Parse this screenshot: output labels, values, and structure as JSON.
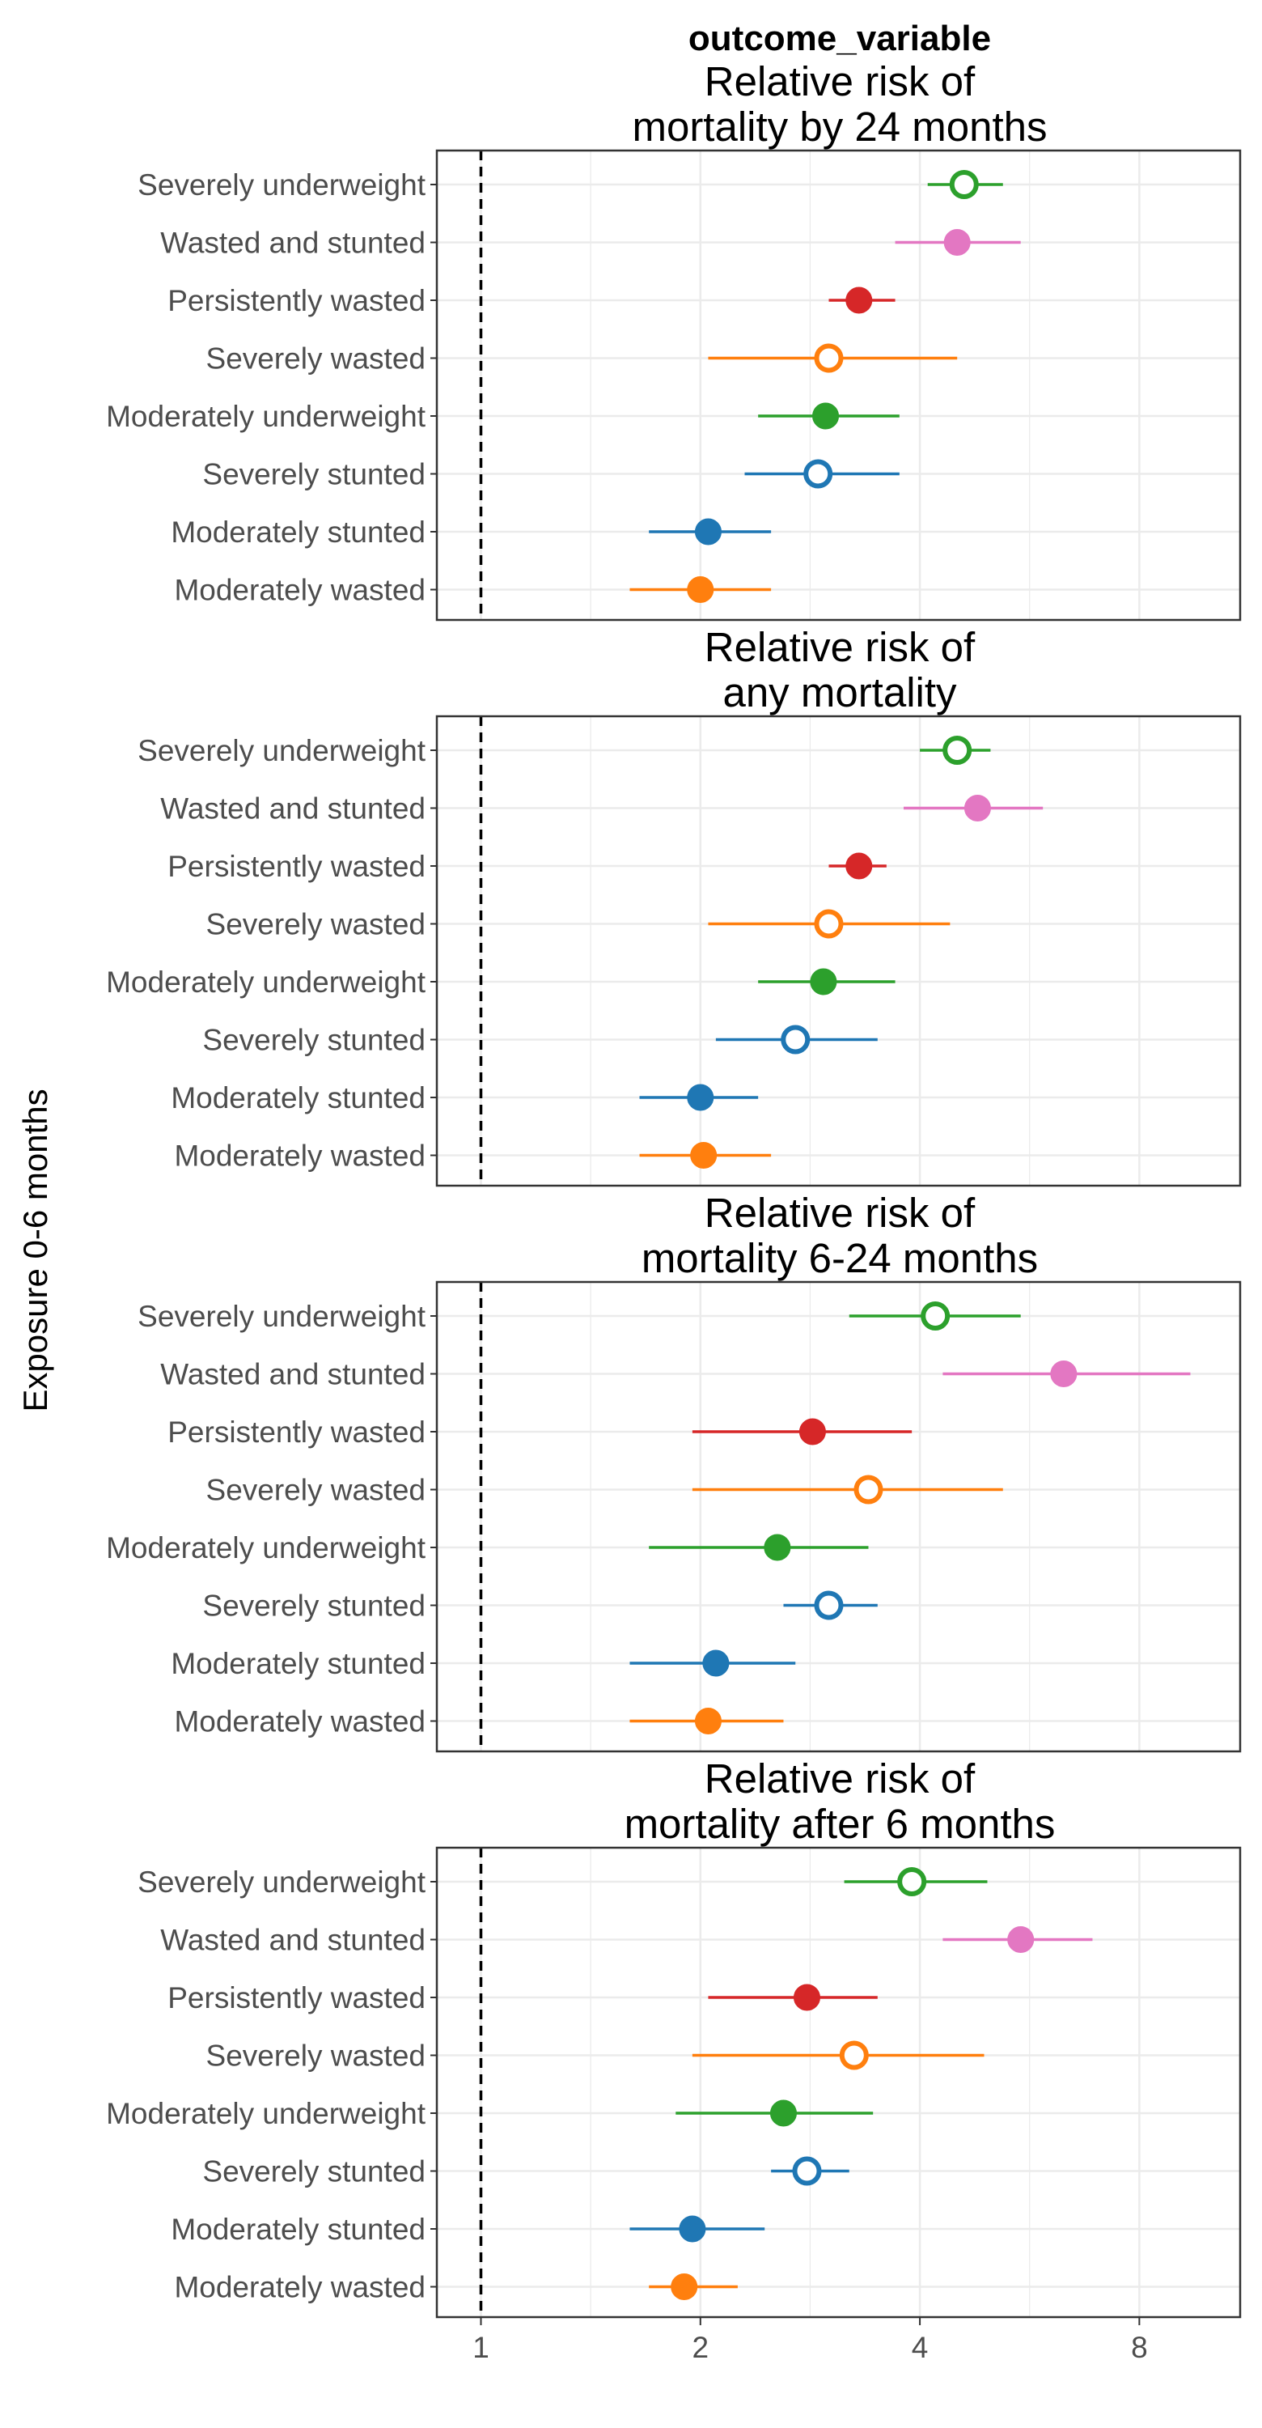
{
  "strip_title": "outcome_variable",
  "y_axis_label": "Exposure 0-6 months",
  "colors": {
    "green": "#2ca02c",
    "pink": "#e377c2",
    "red": "#d62728",
    "orange": "#ff7f0e",
    "blue": "#1f77b4"
  },
  "chart_data": {
    "type": "scatter",
    "subtype": "forest-plot",
    "x_scale": "log2",
    "xlim": [
      0.87,
      11
    ],
    "x_ticks": [
      1,
      2,
      4,
      8
    ],
    "reference_line": 1,
    "grid": true,
    "categories": [
      "Severely underweight",
      "Wasted and stunted",
      "Persistently wasted",
      "Severely wasted",
      "Moderately underweight",
      "Severely stunted",
      "Moderately stunted",
      "Moderately wasted"
    ],
    "marker_style": [
      "hollow",
      "filled",
      "filled",
      "hollow",
      "filled",
      "hollow",
      "filled",
      "filled"
    ],
    "marker_color": [
      "green",
      "pink",
      "red",
      "orange",
      "green",
      "blue",
      "blue",
      "orange"
    ],
    "panels": [
      {
        "title_line1": "Relative risk of",
        "title_line2": "mortality by 24 months",
        "estimates": [
          {
            "est": 4.6,
            "lo": 4.1,
            "hi": 5.2
          },
          {
            "est": 4.5,
            "lo": 3.7,
            "hi": 5.5
          },
          {
            "est": 3.3,
            "lo": 3.0,
            "hi": 3.7
          },
          {
            "est": 3.0,
            "lo": 2.05,
            "hi": 4.5
          },
          {
            "est": 2.97,
            "lo": 2.4,
            "hi": 3.75
          },
          {
            "est": 2.9,
            "lo": 2.3,
            "hi": 3.75
          },
          {
            "est": 2.05,
            "lo": 1.7,
            "hi": 2.5
          },
          {
            "est": 2.0,
            "lo": 1.6,
            "hi": 2.5
          }
        ]
      },
      {
        "title_line1": "Relative risk of",
        "title_line2": "any mortality",
        "estimates": [
          {
            "est": 4.5,
            "lo": 4.0,
            "hi": 5.0
          },
          {
            "est": 4.8,
            "lo": 3.8,
            "hi": 5.9
          },
          {
            "est": 3.3,
            "lo": 3.0,
            "hi": 3.6
          },
          {
            "est": 3.0,
            "lo": 2.05,
            "hi": 4.4
          },
          {
            "est": 2.95,
            "lo": 2.4,
            "hi": 3.7
          },
          {
            "est": 2.7,
            "lo": 2.1,
            "hi": 3.5
          },
          {
            "est": 2.0,
            "lo": 1.65,
            "hi": 2.4
          },
          {
            "est": 2.02,
            "lo": 1.65,
            "hi": 2.5
          }
        ]
      },
      {
        "title_line1": "Relative risk of",
        "title_line2": "mortality 6-24 months",
        "estimates": [
          {
            "est": 4.2,
            "lo": 3.2,
            "hi": 5.5
          },
          {
            "est": 6.3,
            "lo": 4.3,
            "hi": 9.4
          },
          {
            "est": 2.85,
            "lo": 1.95,
            "hi": 3.9
          },
          {
            "est": 3.4,
            "lo": 1.95,
            "hi": 5.2
          },
          {
            "est": 2.55,
            "lo": 1.7,
            "hi": 3.4
          },
          {
            "est": 3.0,
            "lo": 2.6,
            "hi": 3.5
          },
          {
            "est": 2.1,
            "lo": 1.6,
            "hi": 2.7
          },
          {
            "est": 2.05,
            "lo": 1.6,
            "hi": 2.6
          }
        ]
      },
      {
        "title_line1": "Relative risk of",
        "title_line2": "mortality after 6 months",
        "estimates": [
          {
            "est": 3.9,
            "lo": 3.15,
            "hi": 4.95
          },
          {
            "est": 5.5,
            "lo": 4.3,
            "hi": 6.9
          },
          {
            "est": 2.8,
            "lo": 2.05,
            "hi": 3.5
          },
          {
            "est": 3.25,
            "lo": 1.95,
            "hi": 4.9
          },
          {
            "est": 2.6,
            "lo": 1.85,
            "hi": 3.45
          },
          {
            "est": 2.8,
            "lo": 2.5,
            "hi": 3.2
          },
          {
            "est": 1.95,
            "lo": 1.6,
            "hi": 2.45
          },
          {
            "est": 1.9,
            "lo": 1.7,
            "hi": 2.25
          }
        ]
      }
    ]
  }
}
